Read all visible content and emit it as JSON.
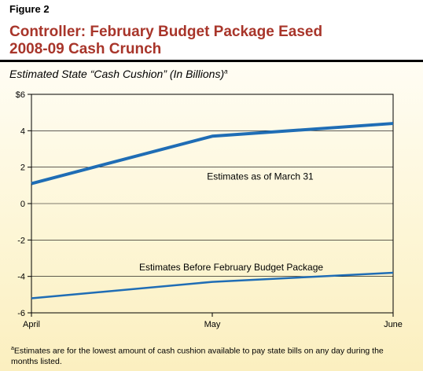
{
  "figure_label": "Figure 2",
  "title_line1": "Controller: February Budget Package Eased",
  "title_line2": "2008-09 Cash Crunch",
  "subtitle": "Estimated State “Cash Cushion” (In Billions)",
  "subtitle_marker": "a",
  "footnote_marker": "a",
  "footnote": "Estimates are for the lowest amount of cash cushion available to pay state bills on any day during the months listed.",
  "colors": {
    "line": "#1f6db5",
    "title": "#a8352a"
  },
  "chart_data": {
    "type": "line",
    "categories": [
      "April",
      "May",
      "June"
    ],
    "y_tick_labels": [
      "$6",
      "4",
      "2",
      "0",
      "-2",
      "-4",
      "-6"
    ],
    "y_ticks": [
      6,
      4,
      2,
      0,
      -2,
      -4,
      -6
    ],
    "ylim": [
      -6,
      6
    ],
    "grid": true,
    "series": [
      {
        "name": "Estimates as of March 31",
        "values": [
          1.1,
          3.7,
          4.4
        ]
      },
      {
        "name": "Estimates Before February Budget Package",
        "values": [
          -5.2,
          -4.3,
          -3.8
        ]
      }
    ]
  }
}
